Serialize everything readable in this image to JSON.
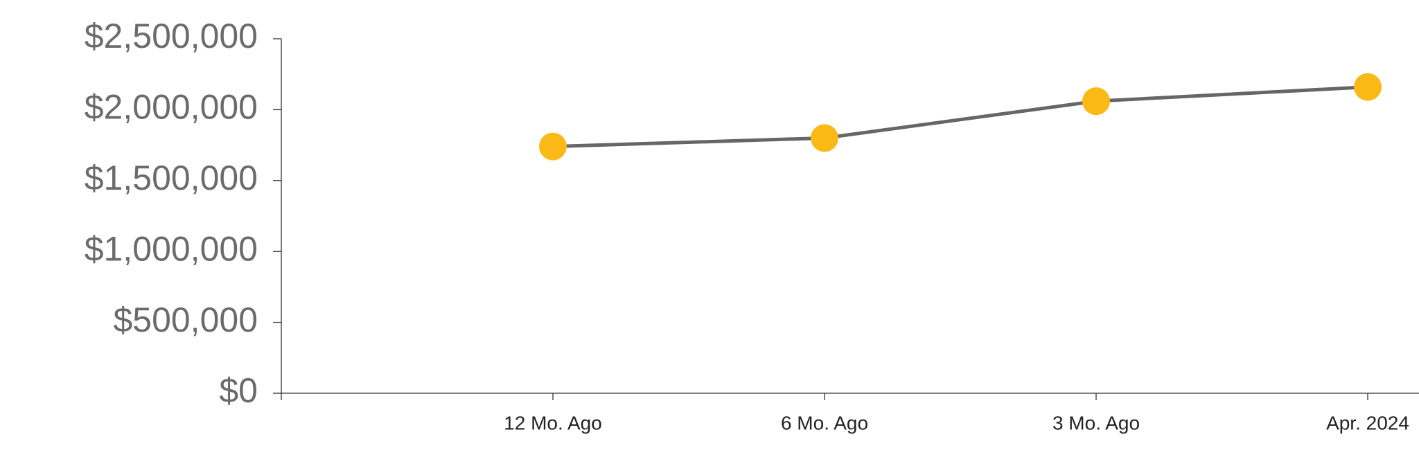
{
  "chart_data": {
    "type": "line",
    "categories": [
      null,
      "12 Mo. Ago",
      "6 Mo. Ago",
      "3 Mo. Ago",
      "Apr. 2024"
    ],
    "series": [
      {
        "name": null,
        "color": "#666666",
        "marker_color": "#fbb917",
        "values": [
          null,
          1740000,
          1800000,
          2060000,
          2160000
        ]
      }
    ],
    "ylim": [
      0,
      2500000
    ],
    "yticks": [
      {
        "value": 0,
        "label": "$0"
      },
      {
        "value": 500000,
        "label": "$500,000"
      },
      {
        "value": 1000000,
        "label": "$1,000,000"
      },
      {
        "value": 1500000,
        "label": "$1,500,000"
      },
      {
        "value": 2000000,
        "label": "$2,000,000"
      },
      {
        "value": 2500000,
        "label": "$2,500,000"
      }
    ]
  }
}
